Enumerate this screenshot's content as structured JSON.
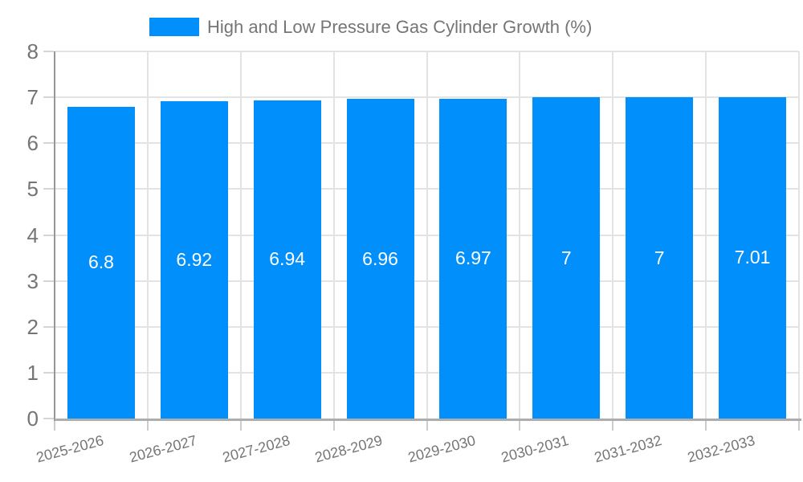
{
  "legend": {
    "label": "High and Low Pressure Gas Cylinder Growth (%)",
    "marker_color": "#008FFB",
    "position": "top"
  },
  "chart_data": {
    "type": "bar",
    "title": "High and Low Pressure Gas Cylinder Growth (%)",
    "categories": [
      "2025-2026",
      "2026-2027",
      "2027-2028",
      "2028-2029",
      "2029-2030",
      "2030-2031",
      "2031-2032",
      "2032-2033"
    ],
    "values": [
      6.8,
      6.92,
      6.94,
      6.96,
      6.97,
      7,
      7,
      7.01
    ],
    "value_labels": [
      "6.8",
      "6.92",
      "6.94",
      "6.96",
      "6.97",
      "7",
      "7",
      "7.01"
    ],
    "xlabel": "",
    "ylabel": "",
    "ylim": [
      0,
      8
    ],
    "y_ticks": [
      0,
      1,
      2,
      3,
      4,
      5,
      6,
      7,
      8
    ],
    "y_tick_labels": [
      "0",
      "1",
      "2",
      "3",
      "4",
      "5",
      "6",
      "7",
      "8"
    ],
    "grid": "on",
    "legend_position": "top",
    "x_label_rotation_deg": -15
  },
  "colors": {
    "bar": "#008FFB",
    "axis_text": "#757575",
    "grid_line": "#E3E3E3",
    "y_axis_line": "#969696",
    "x_axis_line": "#ADADAD",
    "tick": "#D5D5D5",
    "data_label_text": "#FFFFFF",
    "background": "#FFFFFF"
  }
}
